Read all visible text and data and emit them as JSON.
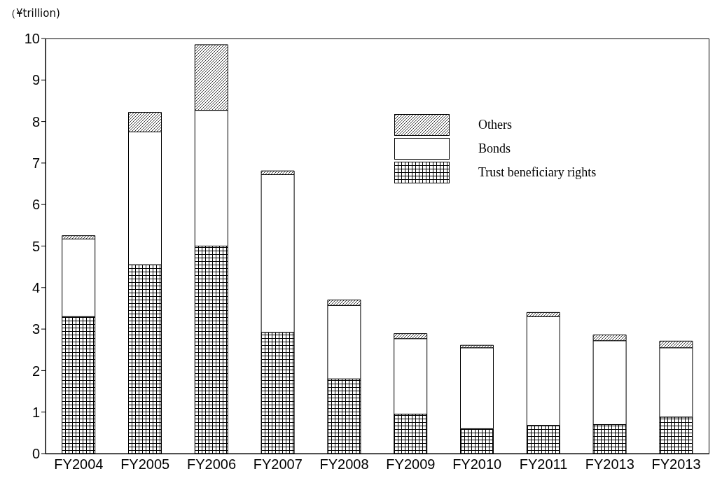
{
  "chart_data": {
    "type": "bar",
    "stacked": true,
    "ylabel": "（¥trillion)",
    "categories": [
      "FY2004",
      "FY2005",
      "FY2006",
      "FY2007",
      "FY2008",
      "FY2009",
      "FY2010",
      "FY2011",
      "FY2013",
      "FY2013"
    ],
    "series": [
      {
        "name": "Trust beneficiary rights",
        "color": "#000000",
        "values": [
          3.3,
          4.55,
          5.0,
          2.92,
          1.8,
          0.95,
          0.6,
          0.68,
          0.7,
          0.88
        ]
      },
      {
        "name": "Bonds",
        "color": "#ffffff",
        "values": [
          1.87,
          3.2,
          3.27,
          3.8,
          1.77,
          1.82,
          1.95,
          2.62,
          2.02,
          1.67
        ]
      },
      {
        "name": "Others",
        "color": "#000000",
        "values": [
          0.08,
          0.47,
          1.58,
          0.09,
          0.13,
          0.12,
          0.06,
          0.1,
          0.14,
          0.16
        ]
      }
    ],
    "ylim": [
      0,
      10
    ],
    "yticks": [
      0,
      1,
      2,
      3,
      4,
      5,
      6,
      7,
      8,
      9,
      10
    ],
    "grid": false,
    "legend": "top right"
  }
}
